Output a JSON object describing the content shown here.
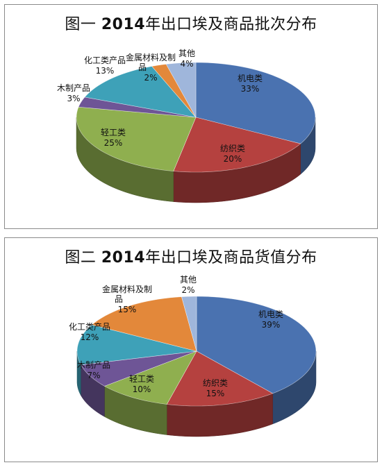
{
  "chart_data": [
    {
      "type": "pie",
      "title_prefix": "图一",
      "title_year": "2014",
      "title_rest": "年出口埃及商品批次分布",
      "title": "图一 2014年出口埃及商品批次分布",
      "slices": [
        {
          "name": "机电类",
          "value": 33,
          "label": "33%",
          "color": "#4a72b0"
        },
        {
          "name": "纺织类",
          "value": 20,
          "label": "20%",
          "color": "#b5413f"
        },
        {
          "name": "轻工类",
          "value": 25,
          "label": "25%",
          "color": "#8faf4f"
        },
        {
          "name": "木制产品",
          "value": 3,
          "label": "3%",
          "color": "#6e5596"
        },
        {
          "name": "化工类产品",
          "value": 13,
          "label": "13%",
          "color": "#3ea1b8"
        },
        {
          "name": "金属材料及制品",
          "value": 2,
          "label": "2%",
          "color": "#e3883a"
        },
        {
          "name": "其他",
          "value": 4,
          "label": "4%",
          "color": "#9fb6db"
        }
      ]
    },
    {
      "type": "pie",
      "title_prefix": "图二",
      "title_year": "2014",
      "title_rest": "年出口埃及商品货值分布",
      "title": "图二 2014年出口埃及商品货值分布",
      "slices": [
        {
          "name": "机电类",
          "value": 39,
          "label": "39%",
          "color": "#4a72b0"
        },
        {
          "name": "纺织类",
          "value": 15,
          "label": "15%",
          "color": "#b5413f"
        },
        {
          "name": "轻工类",
          "value": 10,
          "label": "10%",
          "color": "#8faf4f"
        },
        {
          "name": "木制产品",
          "value": 7,
          "label": "7%",
          "color": "#6e5596"
        },
        {
          "name": "化工类产品",
          "value": 12,
          "label": "12%",
          "color": "#3ea1b8"
        },
        {
          "name": "金属材料及制品",
          "value": 15,
          "label": "15%",
          "color": "#e3883a"
        },
        {
          "name": "其他",
          "value": 2,
          "label": "2%",
          "color": "#9fb6db"
        }
      ]
    }
  ]
}
